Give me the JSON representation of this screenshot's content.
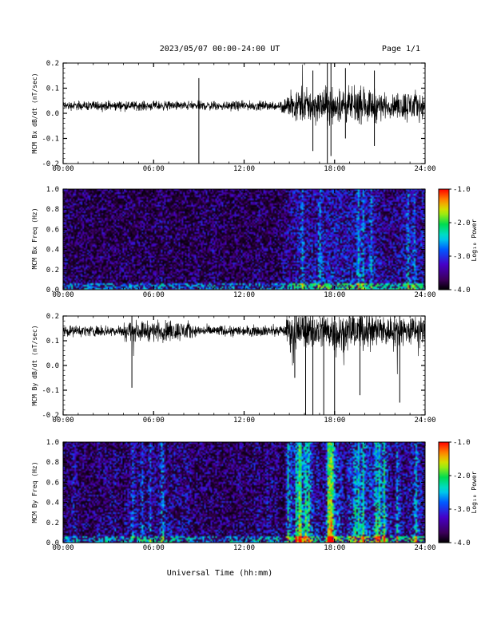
{
  "header": {
    "title": "2023/05/07  00:00-24:00 UT",
    "page": "Page 1/1"
  },
  "chart_data": [
    {
      "type": "line",
      "ylabel": "MCM Bx dB/dt (nT/sec)",
      "ylim": [
        -0.2,
        0.2
      ],
      "yticks": [
        "0.2",
        "0.1",
        "0.0",
        "-0.1",
        "-0.2"
      ],
      "xlim": [
        "00:00",
        "24:00"
      ],
      "xticks": [
        "00:00",
        "06:00",
        "12:00",
        "18:00",
        "24:00"
      ],
      "baseline": 0.03,
      "colors": {
        "trace": "#000000"
      }
    },
    {
      "type": "heatmap",
      "ylabel": "MCM Bx Freq (Hz)",
      "ylim": [
        0.0,
        1.0
      ],
      "yticks": [
        "1.0",
        "0.8",
        "0.6",
        "0.4",
        "0.2",
        "0.0"
      ],
      "xlim": [
        "00:00",
        "24:00"
      ],
      "xticks": [
        "00:00",
        "06:00",
        "12:00",
        "18:00",
        "24:00"
      ],
      "colorbar": {
        "label": "Log₁₀ Power",
        "ticks": [
          "-1.0",
          "-2.0",
          "-3.0",
          "-4.0"
        ],
        "range": [
          -4.0,
          -1.0
        ]
      }
    },
    {
      "type": "line",
      "ylabel": "MCM By dB/dt (nT/sec)",
      "ylim": [
        -0.2,
        0.2
      ],
      "yticks": [
        "0.2",
        "0.1",
        "0.0",
        "-0.1",
        "-0.2"
      ],
      "xlim": [
        "00:00",
        "24:00"
      ],
      "xticks": [
        "00:00",
        "06:00",
        "12:00",
        "18:00",
        "24:00"
      ],
      "baseline": 0.14,
      "colors": {
        "trace": "#000000"
      }
    },
    {
      "type": "heatmap",
      "ylabel": "MCM By Freq (Hz)",
      "ylim": [
        0.0,
        1.0
      ],
      "yticks": [
        "1.0",
        "0.8",
        "0.6",
        "0.4",
        "0.2",
        "0.0"
      ],
      "xlim": [
        "00:00",
        "24:00"
      ],
      "xticks": [
        "00:00",
        "06:00",
        "12:00",
        "18:00",
        "24:00"
      ],
      "colorbar": {
        "label": "Log₁₀ Power",
        "ticks": [
          "-1.0",
          "-2.0",
          "-3.0",
          "-4.0"
        ],
        "range": [
          -4.0,
          -1.0
        ]
      }
    }
  ],
  "xlabel": "Universal Time (hh:mm)"
}
